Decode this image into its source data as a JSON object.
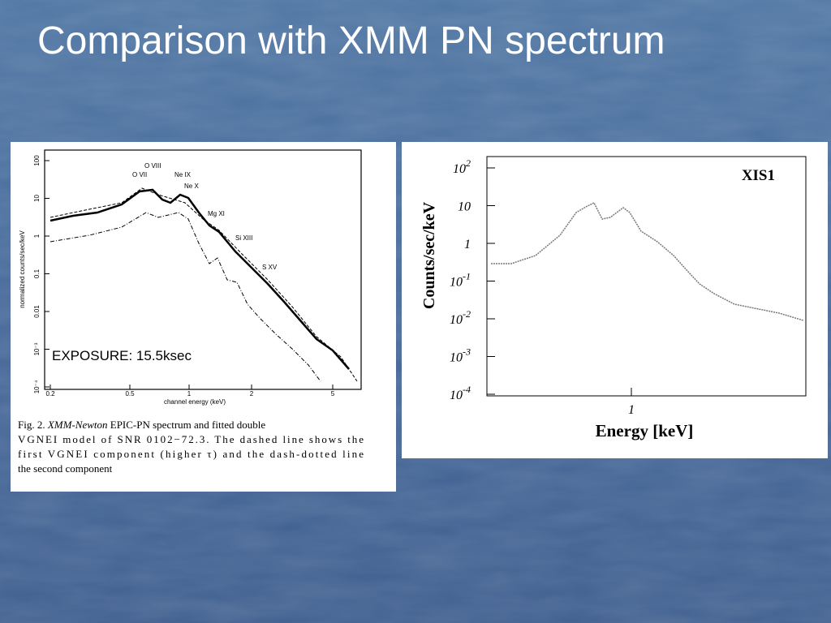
{
  "title": "Comparison with XMM PN spectrum",
  "left_figure": {
    "y_label": "normalized counts/sec/keV",
    "x_label": "channel energy (keV)",
    "y_ticks": [
      "100",
      "10",
      "1",
      "0.1",
      "0.01",
      "10⁻³",
      "10⁻⁴"
    ],
    "x_ticks": [
      "0.2",
      "0.5",
      "1",
      "2",
      "5"
    ],
    "line_labels": [
      "O VIII",
      "O VII",
      "Ne IX",
      "Ne X",
      "Mg XI",
      "Si XIII",
      "S XV"
    ],
    "annotation": "EXPOSURE: 15.5ksec",
    "caption": [
      "Fig. 2.",
      "XMM-Newton",
      "EPIC-PN spectrum and fitted double",
      "VGNEI model of SNR 0102−72.3. The dashed line shows the",
      "first VGNEI component (higher τ) and the dash-dotted line",
      "the second component"
    ]
  },
  "right_figure": {
    "label": "XIS1",
    "y_label": "Counts/sec/keV",
    "x_label": "Energy [keV]",
    "x_ticks": [
      "1"
    ],
    "y_ticks": [
      {
        "base": "10",
        "exp": "2"
      },
      {
        "base": "10",
        "exp": ""
      },
      {
        "base": "1",
        "exp": ""
      },
      {
        "base": "10",
        "exp": "-1"
      },
      {
        "base": "10",
        "exp": "-2"
      },
      {
        "base": "10",
        "exp": "-3"
      },
      {
        "base": "10",
        "exp": "-4"
      }
    ]
  }
}
